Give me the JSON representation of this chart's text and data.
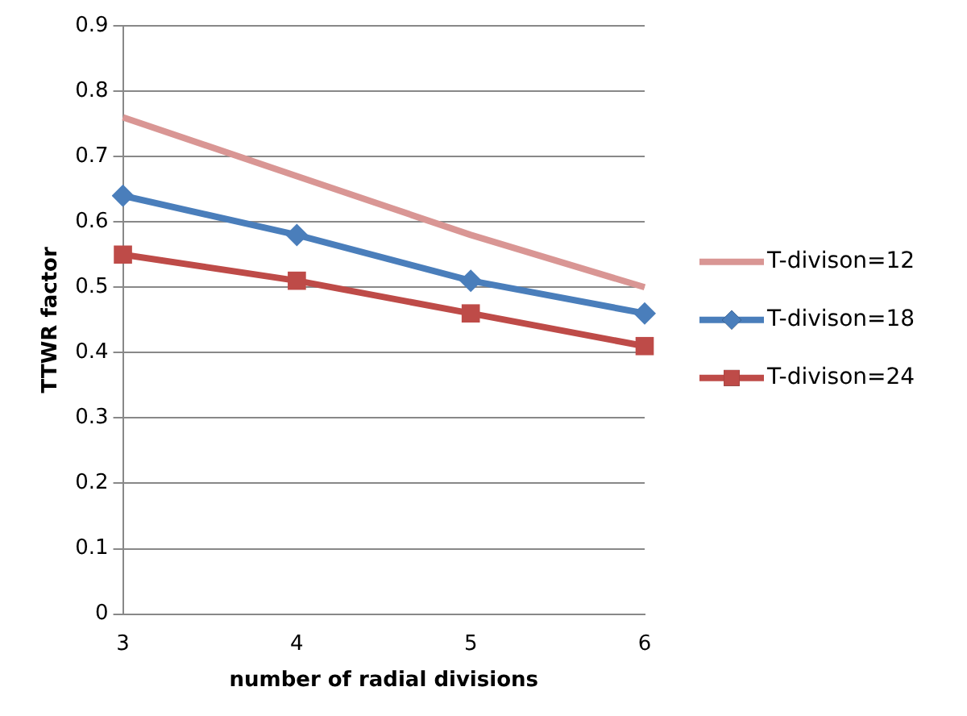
{
  "chart_data": {
    "type": "line",
    "xlabel": "number of radial divisions",
    "ylabel": "TTWR factor",
    "categories": [
      "3",
      "4",
      "5",
      "6"
    ],
    "series": [
      {
        "name": "T-divison=12",
        "color": "#d99694",
        "values": [
          0.76,
          0.67,
          0.58,
          0.5
        ],
        "marker": "none"
      },
      {
        "name": "T-divison=18",
        "color": "#4a7ebb",
        "values": [
          0.64,
          0.58,
          0.51,
          0.46
        ],
        "marker": "diamond"
      },
      {
        "name": "T-divison=24",
        "color": "#be4b48",
        "values": [
          0.55,
          0.51,
          0.46,
          0.41
        ],
        "marker": "square"
      }
    ],
    "ylim": [
      0,
      0.9
    ],
    "yticks": [
      0,
      0.1,
      0.2,
      0.3,
      0.4,
      0.5,
      0.6,
      0.7,
      0.8,
      0.9
    ],
    "grid": "y",
    "legend": "right",
    "line_style": "solid"
  }
}
